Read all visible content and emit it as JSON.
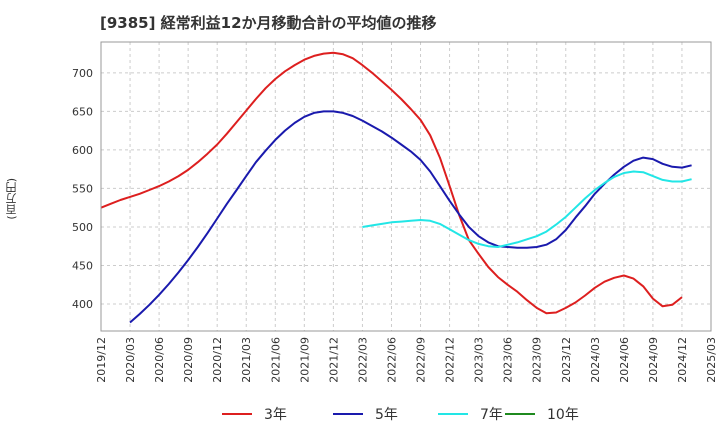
{
  "chart_data": {
    "type": "line",
    "title": "[9385]  経常利益12か月移動合計の平均値の推移",
    "ylabel": "(百万円)",
    "xlabel": "",
    "ylim": [
      365,
      740
    ],
    "yticks": [
      400,
      450,
      500,
      550,
      600,
      650,
      700
    ],
    "x_ticks": [
      "2019/12",
      "2020/03",
      "2020/06",
      "2020/09",
      "2020/12",
      "2021/03",
      "2021/06",
      "2021/09",
      "2021/12",
      "2022/03",
      "2022/06",
      "2022/09",
      "2022/12",
      "2023/03",
      "2023/06",
      "2023/09",
      "2023/12",
      "2024/03",
      "2024/06",
      "2024/09",
      "2024/12",
      "2025/03"
    ],
    "grid": true,
    "legend_position": "bottom",
    "series": [
      {
        "name": "3年",
        "color": "#dd1f1f",
        "points": [
          [
            "2019/12",
            525
          ],
          [
            "2020/01",
            530
          ],
          [
            "2020/02",
            535
          ],
          [
            "2020/03",
            539
          ],
          [
            "2020/04",
            543
          ],
          [
            "2020/05",
            548
          ],
          [
            "2020/06",
            553
          ],
          [
            "2020/07",
            559
          ],
          [
            "2020/08",
            566
          ],
          [
            "2020/09",
            574
          ],
          [
            "2020/10",
            584
          ],
          [
            "2020/11",
            595
          ],
          [
            "2020/12",
            607
          ],
          [
            "2021/01",
            621
          ],
          [
            "2021/02",
            636
          ],
          [
            "2021/03",
            651
          ],
          [
            "2021/04",
            666
          ],
          [
            "2021/05",
            680
          ],
          [
            "2021/06",
            692
          ],
          [
            "2021/07",
            702
          ],
          [
            "2021/08",
            710
          ],
          [
            "2021/09",
            717
          ],
          [
            "2021/10",
            722
          ],
          [
            "2021/11",
            725
          ],
          [
            "2021/12",
            726
          ],
          [
            "2022/01",
            724
          ],
          [
            "2022/02",
            719
          ],
          [
            "2022/03",
            710
          ],
          [
            "2022/04",
            700
          ],
          [
            "2022/05",
            689
          ],
          [
            "2022/06",
            678
          ],
          [
            "2022/07",
            666
          ],
          [
            "2022/08",
            653
          ],
          [
            "2022/09",
            639
          ],
          [
            "2022/10",
            619
          ],
          [
            "2022/11",
            590
          ],
          [
            "2022/12",
            553
          ],
          [
            "2023/01",
            515
          ],
          [
            "2023/02",
            483
          ],
          [
            "2023/03",
            465
          ],
          [
            "2023/04",
            448
          ],
          [
            "2023/05",
            435
          ],
          [
            "2023/06",
            425
          ],
          [
            "2023/07",
            416
          ],
          [
            "2023/08",
            405
          ],
          [
            "2023/09",
            395
          ],
          [
            "2023/10",
            388
          ],
          [
            "2023/11",
            389
          ],
          [
            "2023/12",
            395
          ],
          [
            "2024/01",
            402
          ],
          [
            "2024/02",
            411
          ],
          [
            "2024/03",
            421
          ],
          [
            "2024/04",
            429
          ],
          [
            "2024/05",
            434
          ],
          [
            "2024/06",
            437
          ],
          [
            "2024/07",
            433
          ],
          [
            "2024/08",
            423
          ],
          [
            "2024/09",
            407
          ],
          [
            "2024/10",
            397
          ],
          [
            "2024/11",
            399
          ],
          [
            "2024/12",
            409
          ]
        ]
      },
      {
        "name": "5年",
        "color": "#1a1aad",
        "points": [
          [
            "2020/03",
            376
          ],
          [
            "2020/04",
            387
          ],
          [
            "2020/05",
            399
          ],
          [
            "2020/06",
            412
          ],
          [
            "2020/07",
            426
          ],
          [
            "2020/08",
            441
          ],
          [
            "2020/09",
            457
          ],
          [
            "2020/10",
            474
          ],
          [
            "2020/11",
            492
          ],
          [
            "2020/12",
            511
          ],
          [
            "2021/01",
            530
          ],
          [
            "2021/02",
            548
          ],
          [
            "2021/03",
            566
          ],
          [
            "2021/04",
            584
          ],
          [
            "2021/05",
            599
          ],
          [
            "2021/06",
            613
          ],
          [
            "2021/07",
            625
          ],
          [
            "2021/08",
            635
          ],
          [
            "2021/09",
            643
          ],
          [
            "2021/10",
            648
          ],
          [
            "2021/11",
            650
          ],
          [
            "2021/12",
            650
          ],
          [
            "2022/01",
            648
          ],
          [
            "2022/02",
            644
          ],
          [
            "2022/03",
            638
          ],
          [
            "2022/04",
            631
          ],
          [
            "2022/05",
            624
          ],
          [
            "2022/06",
            616
          ],
          [
            "2022/07",
            607
          ],
          [
            "2022/08",
            598
          ],
          [
            "2022/09",
            587
          ],
          [
            "2022/10",
            572
          ],
          [
            "2022/11",
            553
          ],
          [
            "2022/12",
            534
          ],
          [
            "2023/01",
            516
          ],
          [
            "2023/02",
            500
          ],
          [
            "2023/03",
            488
          ],
          [
            "2023/04",
            480
          ],
          [
            "2023/05",
            475
          ],
          [
            "2023/06",
            474
          ],
          [
            "2023/07",
            473
          ],
          [
            "2023/08",
            473
          ],
          [
            "2023/09",
            474
          ],
          [
            "2023/10",
            477
          ],
          [
            "2023/11",
            484
          ],
          [
            "2023/12",
            496
          ],
          [
            "2024/01",
            512
          ],
          [
            "2024/02",
            527
          ],
          [
            "2024/03",
            543
          ],
          [
            "2024/04",
            556
          ],
          [
            "2024/05",
            568
          ],
          [
            "2024/06",
            578
          ],
          [
            "2024/07",
            586
          ],
          [
            "2024/08",
            590
          ],
          [
            "2024/09",
            588
          ],
          [
            "2024/10",
            582
          ],
          [
            "2024/11",
            578
          ],
          [
            "2024/12",
            577
          ],
          [
            "2025/01",
            580
          ]
        ]
      },
      {
        "name": "7年",
        "color": "#22e6e6",
        "points": [
          [
            "2022/03",
            500
          ],
          [
            "2022/04",
            502
          ],
          [
            "2022/05",
            504
          ],
          [
            "2022/06",
            506
          ],
          [
            "2022/07",
            507
          ],
          [
            "2022/08",
            508
          ],
          [
            "2022/09",
            509
          ],
          [
            "2022/10",
            508
          ],
          [
            "2022/11",
            504
          ],
          [
            "2022/12",
            497
          ],
          [
            "2023/01",
            490
          ],
          [
            "2023/02",
            483
          ],
          [
            "2023/03",
            478
          ],
          [
            "2023/04",
            475
          ],
          [
            "2023/05",
            474
          ],
          [
            "2023/06",
            477
          ],
          [
            "2023/07",
            480
          ],
          [
            "2023/08",
            484
          ],
          [
            "2023/09",
            488
          ],
          [
            "2023/10",
            494
          ],
          [
            "2023/11",
            503
          ],
          [
            "2023/12",
            513
          ],
          [
            "2024/01",
            525
          ],
          [
            "2024/02",
            537
          ],
          [
            "2024/03",
            548
          ],
          [
            "2024/04",
            557
          ],
          [
            "2024/05",
            565
          ],
          [
            "2024/06",
            570
          ],
          [
            "2024/07",
            572
          ],
          [
            "2024/08",
            571
          ],
          [
            "2024/09",
            566
          ],
          [
            "2024/10",
            561
          ],
          [
            "2024/11",
            559
          ],
          [
            "2024/12",
            559
          ],
          [
            "2025/01",
            562
          ]
        ]
      },
      {
        "name": "10年",
        "color": "#1f8a1f",
        "points": []
      }
    ]
  }
}
